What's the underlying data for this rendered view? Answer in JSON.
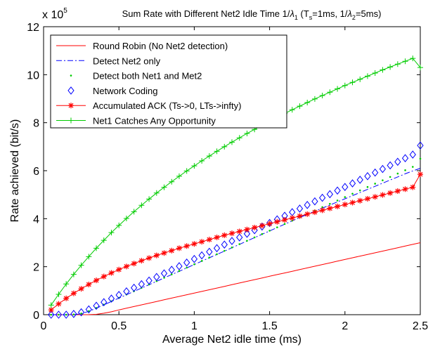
{
  "chart_data": {
    "type": "line",
    "title_main": "Sum Rate with Different Net2 Idle Time 1/",
    "title_lambda1": "λ",
    "title_sub1": "1",
    "title_paren_open": " (T",
    "title_sub_s": "s",
    "title_mid": "=1ms, 1/",
    "title_lambda2": "λ",
    "title_sub2": "2",
    "title_end": "=5ms)",
    "xlabel": "Average Net2 idle time (ms)",
    "ylabel": "Rate achieved (bit/s)",
    "y_multiplier_base": "x 10",
    "y_multiplier_exp": "5",
    "xlim": [
      0,
      2.5
    ],
    "ylim": [
      0,
      12
    ],
    "xticks": [
      0,
      0.5,
      1,
      1.5,
      2,
      2.5
    ],
    "xtick_labels": [
      "0",
      "0.5",
      "1",
      "1.5",
      "2",
      "2.5"
    ],
    "yticks": [
      0,
      2,
      4,
      6,
      8,
      10,
      12
    ],
    "ytick_labels": [
      "0",
      "2",
      "4",
      "6",
      "8",
      "10",
      "12"
    ],
    "y_unit_scale": 100000,
    "legend_position": "top-left",
    "x": [
      0.05,
      0.1,
      0.15,
      0.2,
      0.25,
      0.3,
      0.35,
      0.4,
      0.45,
      0.5,
      0.55,
      0.6,
      0.65,
      0.7,
      0.75,
      0.8,
      0.85,
      0.9,
      0.95,
      1.0,
      1.05,
      1.1,
      1.15,
      1.2,
      1.25,
      1.3,
      1.35,
      1.4,
      1.45,
      1.5,
      1.55,
      1.6,
      1.65,
      1.7,
      1.75,
      1.8,
      1.85,
      1.9,
      1.95,
      2.0,
      2.05,
      2.1,
      2.15,
      2.2,
      2.25,
      2.3,
      2.35,
      2.4,
      2.45,
      2.5
    ],
    "series": [
      {
        "name": "Round Robin (No Net2 detection)",
        "style": "solid",
        "marker": "none",
        "color": "#ff0000",
        "values": [
          0,
          0,
          0,
          0,
          0,
          0.002,
          0.015,
          0.06,
          0.12,
          0.2,
          0.27,
          0.34,
          0.41,
          0.48,
          0.55,
          0.62,
          0.69,
          0.76,
          0.83,
          0.9,
          0.97,
          1.04,
          1.11,
          1.18,
          1.25,
          1.32,
          1.39,
          1.46,
          1.53,
          1.6,
          1.67,
          1.74,
          1.81,
          1.88,
          1.95,
          2.02,
          2.09,
          2.16,
          2.23,
          2.3,
          2.37,
          2.44,
          2.51,
          2.58,
          2.65,
          2.72,
          2.79,
          2.86,
          2.93,
          3.0
        ]
      },
      {
        "name": "Detect Net2 only",
        "style": "dashdot",
        "marker": "none",
        "color": "#0000ff",
        "values": [
          0,
          0,
          0,
          0,
          0.04,
          0.14,
          0.27,
          0.41,
          0.55,
          0.69,
          0.83,
          0.97,
          1.11,
          1.25,
          1.39,
          1.53,
          1.67,
          1.81,
          1.95,
          2.09,
          2.23,
          2.37,
          2.51,
          2.65,
          2.79,
          2.93,
          3.07,
          3.21,
          3.35,
          3.49,
          3.63,
          3.77,
          3.91,
          4.05,
          4.18,
          4.31,
          4.44,
          4.57,
          4.7,
          4.83,
          4.96,
          5.09,
          5.22,
          5.35,
          5.48,
          5.61,
          5.74,
          5.87,
          5.99,
          6.1
        ]
      },
      {
        "name": "Detect both Net1 and Met2",
        "style": "dotted",
        "marker": "dot",
        "color": "#00cc00",
        "values": [
          0,
          0,
          0,
          0.01,
          0.05,
          0.15,
          0.28,
          0.42,
          0.56,
          0.7,
          0.84,
          0.98,
          1.12,
          1.26,
          1.4,
          1.54,
          1.68,
          1.82,
          1.96,
          2.1,
          2.24,
          2.38,
          2.52,
          2.66,
          2.8,
          2.94,
          3.08,
          3.22,
          3.36,
          3.5,
          3.64,
          3.78,
          3.92,
          4.06,
          4.2,
          4.34,
          4.48,
          4.62,
          4.76,
          4.9,
          5.04,
          5.18,
          5.32,
          5.46,
          5.6,
          5.74,
          5.88,
          6.02,
          6.16,
          6.5
        ]
      },
      {
        "name": "Network Coding",
        "style": "none",
        "marker": "diamond",
        "color": "#0000ff",
        "values": [
          0,
          0,
          0,
          0.03,
          0.1,
          0.22,
          0.37,
          0.52,
          0.67,
          0.82,
          0.97,
          1.12,
          1.27,
          1.42,
          1.57,
          1.72,
          1.87,
          2.02,
          2.17,
          2.32,
          2.47,
          2.62,
          2.77,
          2.92,
          3.07,
          3.22,
          3.37,
          3.52,
          3.67,
          3.82,
          3.97,
          4.12,
          4.27,
          4.42,
          4.57,
          4.72,
          4.87,
          5.02,
          5.17,
          5.32,
          5.47,
          5.62,
          5.77,
          5.92,
          6.07,
          6.22,
          6.37,
          6.52,
          6.67,
          7.05
        ]
      },
      {
        "name": "Accumulated ACK (Ts->0, LTs->infty)",
        "style": "solid",
        "marker": "star",
        "color": "#ff0000",
        "values": [
          0.2,
          0.45,
          0.68,
          0.89,
          1.08,
          1.26,
          1.43,
          1.59,
          1.74,
          1.88,
          2.01,
          2.13,
          2.25,
          2.36,
          2.47,
          2.57,
          2.67,
          2.77,
          2.86,
          2.95,
          3.04,
          3.13,
          3.22,
          3.31,
          3.39,
          3.47,
          3.55,
          3.63,
          3.71,
          3.79,
          3.87,
          3.95,
          4.03,
          4.11,
          4.19,
          4.27,
          4.35,
          4.43,
          4.51,
          4.59,
          4.67,
          4.75,
          4.83,
          4.91,
          4.99,
          5.07,
          5.15,
          5.23,
          5.31,
          5.85
        ]
      },
      {
        "name": "Net1 Catches Any Opportunity",
        "style": "solid",
        "marker": "plus",
        "color": "#00cc00",
        "values": [
          0.4,
          0.85,
          1.28,
          1.68,
          2.06,
          2.42,
          2.77,
          3.1,
          3.42,
          3.72,
          4.01,
          4.29,
          4.56,
          4.82,
          5.07,
          5.31,
          5.54,
          5.77,
          5.99,
          6.2,
          6.41,
          6.61,
          6.81,
          7.0,
          7.19,
          7.37,
          7.55,
          7.72,
          7.89,
          8.06,
          8.22,
          8.38,
          8.54,
          8.69,
          8.84,
          8.99,
          9.13,
          9.27,
          9.41,
          9.55,
          9.68,
          9.81,
          9.94,
          10.07,
          10.2,
          10.32,
          10.44,
          10.56,
          10.68,
          10.3
        ]
      }
    ]
  }
}
